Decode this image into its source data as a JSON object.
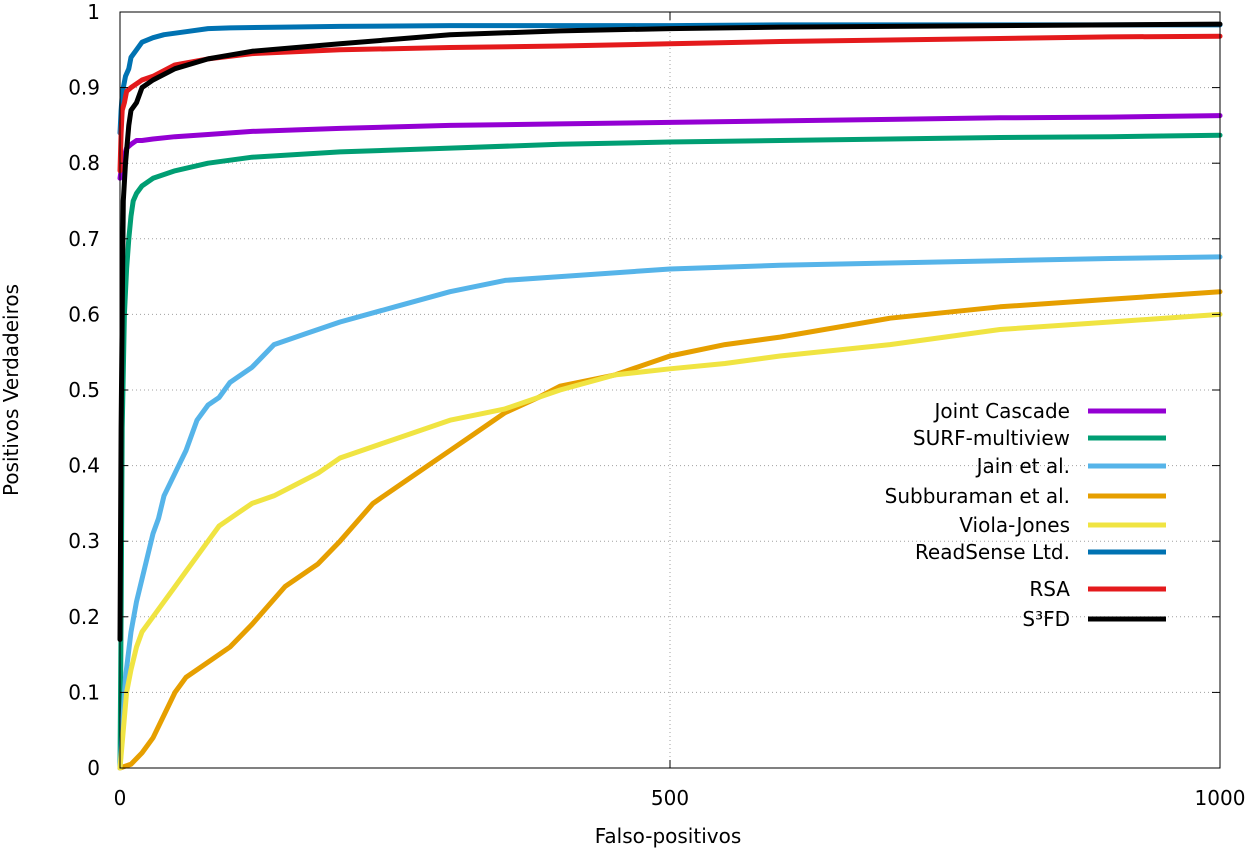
{
  "chart_data": {
    "type": "line",
    "xlabel": "Falso-positivos",
    "ylabel": "Positivos Verdadeiros",
    "xlim": [
      0,
      1000
    ],
    "ylim": [
      0,
      1
    ],
    "x_ticks": [
      "0",
      "500",
      "1000"
    ],
    "y_ticks": [
      "0",
      "0.1",
      "0.2",
      "0.3",
      "0.4",
      "0.5",
      "0.6",
      "0.7",
      "0.8",
      "0.9",
      "1"
    ],
    "grid": true,
    "legend_position": "lower-right",
    "series": [
      {
        "name": "Joint Cascade",
        "color": "#9400d3",
        "x": [
          0,
          1,
          2,
          4,
          6,
          10,
          15,
          20,
          30,
          50,
          80,
          120,
          200,
          300,
          400,
          500,
          600,
          700,
          800,
          900,
          1000
        ],
        "y": [
          0.78,
          0.79,
          0.8,
          0.81,
          0.82,
          0.825,
          0.83,
          0.83,
          0.832,
          0.835,
          0.838,
          0.842,
          0.846,
          0.85,
          0.852,
          0.854,
          0.856,
          0.858,
          0.86,
          0.861,
          0.863
        ]
      },
      {
        "name": "SURF-multiview",
        "color": "#009e73",
        "x": [
          0,
          1,
          2,
          4,
          6,
          8,
          10,
          12,
          15,
          20,
          30,
          50,
          80,
          120,
          200,
          300,
          400,
          500,
          600,
          700,
          800,
          900,
          1000
        ],
        "y": [
          0.0,
          0.2,
          0.45,
          0.6,
          0.66,
          0.7,
          0.73,
          0.75,
          0.76,
          0.77,
          0.78,
          0.79,
          0.8,
          0.808,
          0.815,
          0.82,
          0.825,
          0.828,
          0.83,
          0.832,
          0.834,
          0.835,
          0.837
        ]
      },
      {
        "name": "Jain et al.",
        "color": "#56b4e9",
        "x": [
          0,
          5,
          10,
          15,
          20,
          25,
          30,
          35,
          40,
          50,
          60,
          70,
          80,
          90,
          100,
          120,
          140,
          170,
          200,
          250,
          300,
          350,
          400,
          500,
          600,
          700,
          800,
          900,
          1000
        ],
        "y": [
          0.0,
          0.12,
          0.18,
          0.22,
          0.25,
          0.28,
          0.31,
          0.33,
          0.36,
          0.39,
          0.42,
          0.46,
          0.48,
          0.49,
          0.51,
          0.53,
          0.56,
          0.575,
          0.59,
          0.61,
          0.63,
          0.645,
          0.65,
          0.66,
          0.665,
          0.668,
          0.671,
          0.674,
          0.676
        ]
      },
      {
        "name": "Subburaman et al.",
        "color": "#e69f00",
        "x": [
          0,
          10,
          20,
          30,
          40,
          50,
          60,
          80,
          100,
          120,
          150,
          180,
          200,
          230,
          260,
          280,
          300,
          320,
          350,
          380,
          400,
          450,
          500,
          550,
          600,
          700,
          800,
          900,
          1000
        ],
        "y": [
          0.0,
          0.005,
          0.02,
          0.04,
          0.07,
          0.1,
          0.12,
          0.14,
          0.16,
          0.19,
          0.24,
          0.27,
          0.3,
          0.35,
          0.38,
          0.4,
          0.42,
          0.44,
          0.47,
          0.49,
          0.505,
          0.52,
          0.545,
          0.56,
          0.57,
          0.595,
          0.61,
          0.62,
          0.63
        ]
      },
      {
        "name": "Viola-Jones",
        "color": "#f0e442",
        "x": [
          0,
          3,
          6,
          10,
          15,
          20,
          30,
          40,
          50,
          60,
          70,
          80,
          90,
          100,
          120,
          140,
          160,
          180,
          200,
          250,
          300,
          350,
          400,
          450,
          500,
          550,
          600,
          700,
          800,
          900,
          1000
        ],
        "y": [
          0.0,
          0.05,
          0.1,
          0.13,
          0.16,
          0.18,
          0.2,
          0.22,
          0.24,
          0.26,
          0.28,
          0.3,
          0.32,
          0.33,
          0.35,
          0.36,
          0.375,
          0.39,
          0.41,
          0.435,
          0.46,
          0.475,
          0.5,
          0.52,
          0.528,
          0.535,
          0.545,
          0.56,
          0.58,
          0.59,
          0.6
        ]
      },
      {
        "name": "ReadSense Ltd.",
        "color": "#0072b2",
        "x": [
          0,
          1,
          2,
          3,
          5,
          8,
          10,
          15,
          20,
          30,
          40,
          60,
          80,
          100,
          150,
          200,
          300,
          400,
          500,
          600,
          700,
          800,
          900,
          1000
        ],
        "y": [
          0.84,
          0.87,
          0.89,
          0.9,
          0.915,
          0.925,
          0.94,
          0.95,
          0.96,
          0.966,
          0.97,
          0.974,
          0.978,
          0.979,
          0.98,
          0.981,
          0.982,
          0.982,
          0.982,
          0.983,
          0.983,
          0.983,
          0.983,
          0.983
        ]
      },
      {
        "name": "RSA",
        "color": "#e41a1c",
        "x": [
          0,
          1,
          2,
          4,
          6,
          10,
          15,
          20,
          30,
          50,
          80,
          120,
          200,
          300,
          400,
          500,
          600,
          700,
          800,
          900,
          1000
        ],
        "y": [
          0.79,
          0.84,
          0.87,
          0.88,
          0.895,
          0.9,
          0.905,
          0.91,
          0.915,
          0.93,
          0.938,
          0.945,
          0.95,
          0.953,
          0.955,
          0.958,
          0.961,
          0.963,
          0.965,
          0.967,
          0.968
        ]
      },
      {
        "name": "S³FD",
        "color": "#000000",
        "x": [
          0,
          1,
          2,
          3,
          5,
          8,
          10,
          15,
          20,
          30,
          50,
          80,
          120,
          200,
          300,
          400,
          500,
          600,
          700,
          800,
          900,
          1000
        ],
        "y": [
          0.17,
          0.45,
          0.6,
          0.75,
          0.8,
          0.85,
          0.87,
          0.88,
          0.9,
          0.91,
          0.925,
          0.938,
          0.948,
          0.958,
          0.97,
          0.975,
          0.978,
          0.98,
          0.981,
          0.982,
          0.983,
          0.984
        ]
      }
    ]
  }
}
